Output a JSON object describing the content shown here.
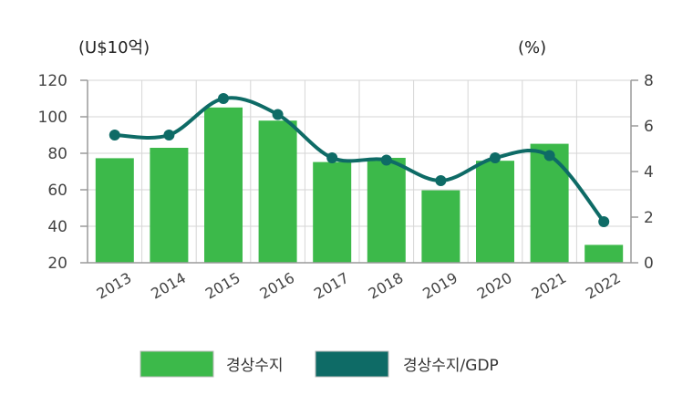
{
  "chart_data": {
    "type": "bar",
    "title": "",
    "left_unit": "(U$10억)",
    "right_unit": "(%)",
    "categories": [
      "2013",
      "2014",
      "2015",
      "2016",
      "2017",
      "2018",
      "2019",
      "2020",
      "2021",
      "2022"
    ],
    "series": [
      {
        "name": "경상수지",
        "type": "bar",
        "axis": "left",
        "color": "#3cb94a",
        "values": [
          77.3,
          83.0,
          105.1,
          97.9,
          75.2,
          77.5,
          59.7,
          75.9,
          85.2,
          29.8
        ]
      },
      {
        "name": "경상수지/GDP",
        "type": "line",
        "axis": "right",
        "color": "#0e6b66",
        "values": [
          5.6,
          5.6,
          7.2,
          6.5,
          4.6,
          4.5,
          3.6,
          4.6,
          4.7,
          1.8
        ]
      }
    ],
    "y_left": {
      "min": 20,
      "max": 120,
      "ticks": [
        "120",
        "100",
        "80",
        "60",
        "40",
        "20"
      ]
    },
    "y_right": {
      "min": 0,
      "max": 8,
      "ticks": [
        "8",
        "6",
        "4",
        "2",
        "0"
      ]
    },
    "grid": true,
    "legend_position": "bottom"
  }
}
